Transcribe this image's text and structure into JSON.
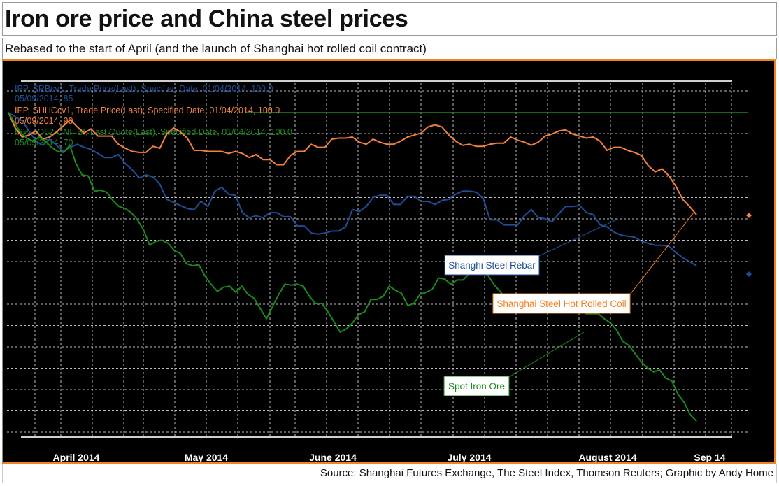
{
  "header": {
    "title": "Iron ore price and China steel prices",
    "subtitle": "Rebased to the start of April (and the launch of Shanghai hot rolled coil contract)"
  },
  "footer": {
    "source": "Source: Shanghai Futures Exchange, The Steel Index, Thomson Reuters; Graphic by Andy Home"
  },
  "colors": {
    "background": "#000000",
    "frame_accent": "#f58220",
    "rebar": "#1f4e96",
    "hrc": "#f5823a",
    "iron_ore": "#1a8a1a",
    "grid": "#bdbdbd"
  },
  "chart_data": {
    "type": "line",
    "title": "Iron ore price and China steel prices",
    "subtitle": "Rebased to the start of April (and the launch of Shanghai hot rolled coil contract)",
    "xlabel": "",
    "ylabel": "",
    "x_tick_labels": [
      "April 2014",
      "May 2014",
      "June 2014",
      "July 2014",
      "August 2014",
      "Sep 14"
    ],
    "ylim": [
      66,
      108
    ],
    "grid": true,
    "reference_line": 100,
    "legend_position": "top-left",
    "legend": [
      {
        "series": "rebar",
        "line1": "IPP, SRBcv1, Trade Price(Last), Specified Date, 01/04/2014, 100.0",
        "line2": "05/09/2014, 85"
      },
      {
        "series": "hrc",
        "line1": "IPP, SHHCcv1, Trade Price(Last), Specified Date, 01/04/2014, 100.0",
        "line2": "05/09/2014, 90"
      },
      {
        "series": "iron_ore",
        "line1": "IPP, .IO62-CNI=SI, Last Quote(Last), Specified Date, 01/04/2014, 100.0",
        "line2": "05/09/2014, 70"
      }
    ],
    "annotations": [
      {
        "series": "rebar",
        "text": "Shanghi Steel Rebar"
      },
      {
        "series": "hrc",
        "text": "Shanghai Steel Hot Rolled Coil"
      },
      {
        "series": "iron_ore",
        "text": "Spot Iron Ore"
      }
    ],
    "x_start": "01/04/2014",
    "x_end": "05/09/2014",
    "series": [
      {
        "key": "rebar",
        "name": "Shanghai Steel Rebar (SRBcv1)",
        "values": [
          100,
          99.6,
          99.2,
          98.2,
          97.2,
          96.8,
          97.4,
          96.8,
          96.2,
          96.6,
          96.9,
          96.6,
          96.4,
          96.0,
          95.6,
          95.6,
          95.9,
          95.0,
          94.4,
          93.6,
          93.9,
          93.7,
          93.0,
          91.5,
          91.2,
          90.9,
          90.6,
          90.5,
          91.3,
          90.8,
          92.3,
          92.7,
          92.0,
          91.9,
          90.2,
          89.7,
          89.9,
          89.7,
          90.2,
          90.2,
          89.8,
          89.8,
          88.9,
          88.9,
          88.2,
          88.1,
          88.2,
          88.4,
          88.4,
          88.8,
          90.5,
          90.3,
          90.8,
          91.7,
          91.9,
          91.9,
          91.0,
          91.0,
          91.8,
          91.8,
          91.3,
          91.3,
          91.0,
          91.4,
          91.5,
          92.0,
          92.3,
          92.3,
          92.2,
          91.6,
          89.5,
          89.5,
          89.0,
          89.0,
          89.0,
          89.9,
          90.5,
          89.7,
          89.6,
          89.3,
          90.1,
          90.8,
          90.8,
          90.9,
          90.2,
          90.0,
          89.0,
          88.8,
          88.3,
          88.0,
          87.9,
          87.8,
          87.4,
          87.2,
          87.0,
          87.0,
          86.9,
          86.3,
          85.8,
          85.4,
          85.0
        ]
      },
      {
        "key": "hrc",
        "name": "Shanghai Steel Hot Rolled Coil (SHHCcv1)",
        "values": [
          100,
          98.5,
          97.6,
          97.8,
          98.2,
          97.4,
          97.6,
          98.1,
          98.7,
          99.3,
          98.6,
          98.0,
          98.4,
          97.7,
          97.7,
          97.7,
          96.9,
          96.5,
          96.2,
          96.1,
          96.1,
          96.7,
          96.5,
          97.9,
          98.5,
          98.1,
          97.5,
          96.3,
          96.3,
          96.2,
          96.2,
          96.2,
          96.0,
          96.2,
          96.0,
          95.6,
          95.9,
          95.4,
          95.4,
          94.9,
          94.9,
          95.8,
          96.2,
          96.2,
          96.9,
          96.6,
          96.6,
          97.4,
          97.5,
          97.5,
          97.6,
          97.1,
          96.9,
          97.4,
          97.1,
          96.9,
          96.9,
          97.2,
          97.6,
          97.8,
          98.0,
          98.6,
          98.8,
          98.6,
          97.8,
          97.2,
          96.8,
          96.9,
          96.7,
          96.7,
          96.9,
          97.0,
          97.0,
          97.6,
          97.3,
          97.1,
          96.8,
          97.1,
          97.7,
          97.9,
          98.2,
          98.3,
          97.9,
          97.7,
          97.5,
          97.6,
          97.2,
          96.3,
          96.6,
          96.6,
          96.3,
          96.1,
          95.8,
          94.8,
          94.2,
          94.5,
          93.8,
          92.8,
          91.5,
          90.8,
          90.0
        ]
      },
      {
        "key": "iron_ore",
        "name": "Spot Iron Ore (.IO62-CNI=SI)",
        "values": [
          100,
          99.0,
          98.0,
          97.5,
          97.2,
          97.6,
          97.2,
          96.6,
          96.2,
          96.1,
          96.8,
          95.0,
          93.9,
          93.8,
          92.3,
          92.4,
          92.2,
          91.4,
          90.8,
          90.6,
          90.2,
          89.5,
          88.5,
          87.0,
          87.4,
          87.5,
          87.2,
          86.5,
          86.2,
          85.2,
          85.0,
          85.1,
          84.0,
          83.2,
          82.5,
          82.9,
          83.0,
          82.4,
          83.0,
          82.2,
          81.8,
          80.8,
          79.8,
          81.0,
          82.2,
          83.2,
          83.1,
          83.2,
          83.0,
          82.0,
          81.3,
          81.3,
          80.5,
          79.5,
          78.5,
          78.8,
          79.4,
          80.2,
          80.5,
          81.7,
          81.7,
          82.0,
          83.0,
          82.6,
          82.3,
          81.1,
          81.3,
          82.2,
          82.4,
          82.7,
          83.8,
          83.7,
          83.2,
          83.6,
          83.6,
          84.2,
          84.2,
          84.2,
          84.1,
          83.2,
          82.5,
          81.8,
          81.3,
          80.6,
          81.0,
          81.4,
          81.7,
          82.0,
          81.7,
          81.9,
          81.9,
          82.2,
          81.7,
          81.1,
          80.3,
          80.3,
          80.3,
          79.8,
          79.4,
          78.7,
          77.6,
          77.2,
          76.4,
          75.6,
          75.0,
          74.6,
          74.8,
          74.0,
          73.7,
          72.4,
          71.6,
          70.4,
          69.8
        ]
      }
    ]
  }
}
